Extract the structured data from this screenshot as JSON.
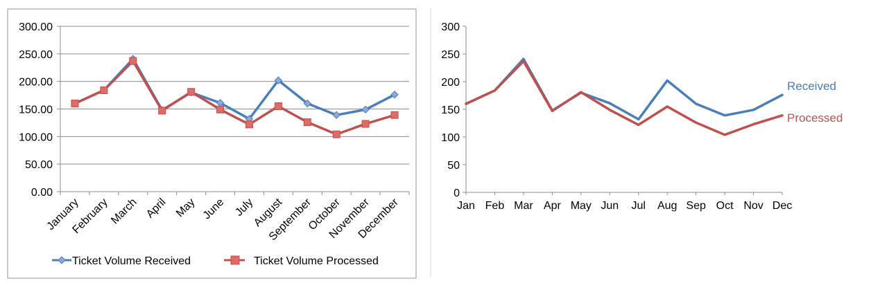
{
  "colors": {
    "received": "#4a7ebb",
    "processed": "#c0504d",
    "received_marker_fill": "#8fa9d8",
    "processed_marker_fill": "#e06a66",
    "frame": "#a6a6a6",
    "gridline": "#8c8c8c",
    "divider": "#d9d9d9",
    "text": "#000000"
  },
  "chart_data": [
    {
      "type": "line",
      "title": "",
      "xlabel": "",
      "ylabel": "",
      "categories": [
        "January",
        "February",
        "March",
        "April",
        "May",
        "June",
        "July",
        "August",
        "September",
        "October",
        "November",
        "December"
      ],
      "y_ticks": [
        "0.00",
        "50.00",
        "100.00",
        "150.00",
        "200.00",
        "250.00",
        "300.00"
      ],
      "ylim": [
        0,
        300
      ],
      "grid": true,
      "legend": "bottom",
      "markers": true,
      "series": [
        {
          "name": "Ticket Volume Received",
          "color": "#4a7ebb",
          "marker": "diamond",
          "values": [
            160,
            184,
            241,
            148,
            180,
            161,
            132,
            202,
            160,
            139,
            149,
            176
          ]
        },
        {
          "name": "Ticket Volume Processed",
          "color": "#c0504d",
          "marker": "square",
          "values": [
            160,
            184,
            237,
            147,
            181,
            149,
            122,
            155,
            126,
            104,
            123,
            139
          ]
        }
      ]
    },
    {
      "type": "line",
      "title": "",
      "xlabel": "",
      "ylabel": "",
      "categories": [
        "Jan",
        "Feb",
        "Mar",
        "Apr",
        "May",
        "Jun",
        "Jul",
        "Aug",
        "Sep",
        "Oct",
        "Nov",
        "Dec"
      ],
      "y_ticks": [
        "0",
        "50",
        "100",
        "150",
        "200",
        "250",
        "300"
      ],
      "ylim": [
        0,
        300
      ],
      "grid": false,
      "legend": "direct labels at line ends",
      "markers": false,
      "series": [
        {
          "name": "Received",
          "color": "#4a7ebb",
          "values": [
            160,
            184,
            241,
            148,
            180,
            161,
            132,
            202,
            160,
            139,
            149,
            176
          ]
        },
        {
          "name": "Processed",
          "color": "#c0504d",
          "values": [
            160,
            184,
            237,
            147,
            181,
            149,
            122,
            155,
            126,
            104,
            123,
            139
          ]
        }
      ]
    }
  ]
}
